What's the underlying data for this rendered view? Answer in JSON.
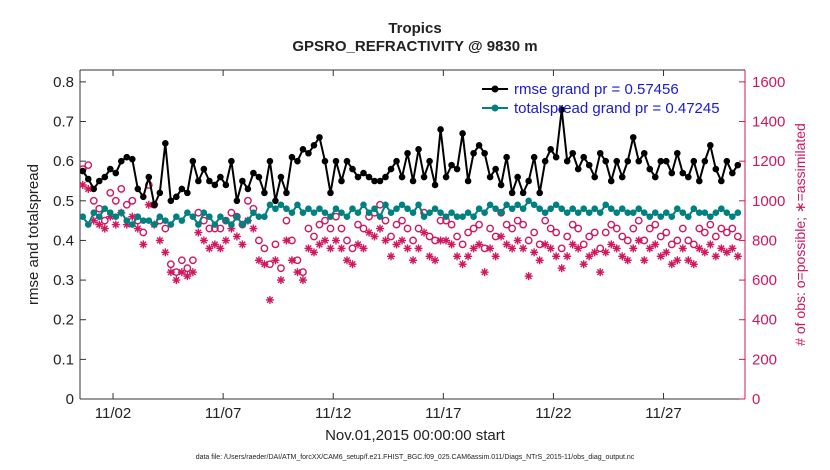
{
  "chart_data": {
    "type": "line",
    "title": "Tropics",
    "subtitle": "GPSRO_REFRACTIVITY @ 9830 m",
    "xlabel": "Nov.01,2015 00:00:00 start",
    "ylabel": "rmse and totalspread",
    "y2label": "# of obs: o=possible; ∗=assimilated",
    "footnote": "data file: /Users/raeder/DAI/ATM_forcXX/CAM6_setup/f.e21.FHIST_BGC.f09_025.CAM6assim.011/Diags_NTrS_2015-11/obs_diag_output.nc",
    "xlim": [
      0.5,
      30.7
    ],
    "ylim": [
      0,
      0.83
    ],
    "y2lim": [
      0,
      1660
    ],
    "xticks": [
      {
        "value": 2,
        "label": "11/02"
      },
      {
        "value": 7,
        "label": "11/07"
      },
      {
        "value": 12,
        "label": "11/12"
      },
      {
        "value": 17,
        "label": "11/17"
      },
      {
        "value": 22,
        "label": "11/22"
      },
      {
        "value": 27,
        "label": "11/27"
      }
    ],
    "yticks": [
      "0",
      "0.1",
      "0.2",
      "0.3",
      "0.4",
      "0.5",
      "0.6",
      "0.7",
      "0.8"
    ],
    "y2ticks": [
      "0",
      "200",
      "400",
      "600",
      "800",
      "1000",
      "1200",
      "1400",
      "1600"
    ],
    "legend_location": "top-right",
    "series": [
      {
        "name": "rmse grand pr = 0.57456",
        "axis": "left",
        "color": "#000000",
        "marker": "circle",
        "x": [
          0.625,
          0.875,
          1.125,
          1.375,
          1.625,
          1.875,
          2.125,
          2.375,
          2.625,
          2.875,
          3.125,
          3.375,
          3.625,
          3.875,
          4.125,
          4.375,
          4.625,
          4.875,
          5.125,
          5.375,
          5.625,
          5.875,
          6.125,
          6.375,
          6.625,
          6.875,
          7.125,
          7.375,
          7.625,
          7.875,
          8.125,
          8.375,
          8.625,
          8.875,
          9.125,
          9.375,
          9.625,
          9.875,
          10.125,
          10.375,
          10.625,
          10.875,
          11.125,
          11.375,
          11.625,
          11.875,
          12.125,
          12.375,
          12.625,
          12.875,
          13.125,
          13.375,
          13.625,
          13.875,
          14.125,
          14.375,
          14.625,
          14.875,
          15.125,
          15.375,
          15.625,
          15.875,
          16.125,
          16.375,
          16.625,
          16.875,
          17.125,
          17.375,
          17.625,
          17.875,
          18.125,
          18.375,
          18.625,
          18.875,
          19.125,
          19.375,
          19.625,
          19.875,
          20.125,
          20.375,
          20.625,
          20.875,
          21.125,
          21.375,
          21.625,
          21.875,
          22.125,
          22.375,
          22.625,
          22.875,
          23.125,
          23.375,
          23.625,
          23.875,
          24.125,
          24.375,
          24.625,
          24.875,
          25.125,
          25.375,
          25.625,
          25.875,
          26.125,
          26.375,
          26.625,
          26.875,
          27.125,
          27.375,
          27.625,
          27.875,
          28.125,
          28.375,
          28.625,
          28.875,
          29.125,
          29.375,
          29.625,
          29.875,
          30.125,
          30.375
        ],
        "values": [
          0.575,
          0.555,
          0.53,
          0.55,
          0.56,
          0.58,
          0.57,
          0.6,
          0.61,
          0.605,
          0.53,
          0.51,
          0.56,
          0.49,
          0.52,
          0.645,
          0.5,
          0.51,
          0.53,
          0.52,
          0.6,
          0.55,
          0.58,
          0.55,
          0.54,
          0.56,
          0.54,
          0.6,
          0.5,
          0.55,
          0.53,
          0.57,
          0.56,
          0.52,
          0.6,
          0.5,
          0.56,
          0.52,
          0.61,
          0.6,
          0.63,
          0.62,
          0.64,
          0.66,
          0.6,
          0.52,
          0.6,
          0.55,
          0.6,
          0.58,
          0.56,
          0.57,
          0.56,
          0.55,
          0.55,
          0.56,
          0.58,
          0.6,
          0.56,
          0.62,
          0.55,
          0.63,
          0.56,
          0.6,
          0.54,
          0.68,
          0.56,
          0.59,
          0.58,
          0.67,
          0.55,
          0.62,
          0.64,
          0.62,
          0.56,
          0.58,
          0.54,
          0.61,
          0.52,
          0.56,
          0.52,
          0.55,
          0.61,
          0.52,
          0.6,
          0.63,
          0.61,
          0.73,
          0.6,
          0.62,
          0.58,
          0.61,
          0.59,
          0.56,
          0.62,
          0.6,
          0.55,
          0.6,
          0.56,
          0.6,
          0.66,
          0.6,
          0.62,
          0.58,
          0.56,
          0.6,
          0.6,
          0.57,
          0.62,
          0.57,
          0.56,
          0.6,
          0.55,
          0.6,
          0.64,
          0.58,
          0.55,
          0.6,
          0.57,
          0.59
        ],
        "_note": "values above are the primary black rmse series"
      },
      {
        "name": "totalspread grand pr = 0.47245",
        "axis": "left",
        "color": "#008080",
        "marker": "circle",
        "x": [
          0.625,
          0.875,
          1.125,
          1.375,
          1.625,
          1.875,
          2.125,
          2.375,
          2.625,
          2.875,
          3.125,
          3.375,
          3.625,
          3.875,
          4.125,
          4.375,
          4.625,
          4.875,
          5.125,
          5.375,
          5.625,
          5.875,
          6.125,
          6.375,
          6.625,
          6.875,
          7.125,
          7.375,
          7.625,
          7.875,
          8.125,
          8.375,
          8.625,
          8.875,
          9.125,
          9.375,
          9.625,
          9.875,
          10.125,
          10.375,
          10.625,
          10.875,
          11.125,
          11.375,
          11.625,
          11.875,
          12.125,
          12.375,
          12.625,
          12.875,
          13.125,
          13.375,
          13.625,
          13.875,
          14.125,
          14.375,
          14.625,
          14.875,
          15.125,
          15.375,
          15.625,
          15.875,
          16.125,
          16.375,
          16.625,
          16.875,
          17.125,
          17.375,
          17.625,
          17.875,
          18.125,
          18.375,
          18.625,
          18.875,
          19.125,
          19.375,
          19.625,
          19.875,
          20.125,
          20.375,
          20.625,
          20.875,
          21.125,
          21.375,
          21.625,
          21.875,
          22.125,
          22.375,
          22.625,
          22.875,
          23.125,
          23.375,
          23.625,
          23.875,
          24.125,
          24.375,
          24.625,
          24.875,
          25.125,
          25.375,
          25.625,
          25.875,
          26.125,
          26.375,
          26.625,
          26.875,
          27.125,
          27.375,
          27.625,
          27.875,
          28.125,
          28.375,
          28.625,
          28.875,
          29.125,
          29.375,
          29.625,
          29.875,
          30.125,
          30.375
        ],
        "values": [
          0.46,
          0.44,
          0.47,
          0.46,
          0.48,
          0.47,
          0.46,
          0.47,
          0.45,
          0.44,
          0.46,
          0.45,
          0.45,
          0.44,
          0.46,
          0.45,
          0.44,
          0.46,
          0.45,
          0.47,
          0.46,
          0.44,
          0.47,
          0.46,
          0.44,
          0.46,
          0.45,
          0.44,
          0.46,
          0.44,
          0.45,
          0.47,
          0.46,
          0.46,
          0.49,
          0.48,
          0.49,
          0.48,
          0.47,
          0.49,
          0.47,
          0.48,
          0.47,
          0.48,
          0.47,
          0.46,
          0.48,
          0.47,
          0.46,
          0.48,
          0.47,
          0.49,
          0.47,
          0.48,
          0.46,
          0.49,
          0.47,
          0.48,
          0.49,
          0.48,
          0.47,
          0.49,
          0.46,
          0.47,
          0.48,
          0.47,
          0.46,
          0.47,
          0.46,
          0.46,
          0.47,
          0.46,
          0.48,
          0.47,
          0.49,
          0.48,
          0.47,
          0.49,
          0.48,
          0.49,
          0.48,
          0.5,
          0.49,
          0.48,
          0.47,
          0.48,
          0.49,
          0.48,
          0.47,
          0.48,
          0.47,
          0.48,
          0.47,
          0.48,
          0.47,
          0.49,
          0.48,
          0.47,
          0.48,
          0.47,
          0.47,
          0.48,
          0.47,
          0.46,
          0.47,
          0.46,
          0.47,
          0.46,
          0.48,
          0.47,
          0.46,
          0.48,
          0.47,
          0.47,
          0.46,
          0.47,
          0.48,
          0.47,
          0.46,
          0.47
        ]
      },
      {
        "name": "# of obs possible",
        "axis": "right",
        "color": "#d0165e",
        "marker": "open-circle",
        "x": [
          0.625,
          0.875,
          1.125,
          1.375,
          1.625,
          1.875,
          2.125,
          2.375,
          2.625,
          2.875,
          3.125,
          3.375,
          3.625,
          3.875,
          4.125,
          4.375,
          4.625,
          4.875,
          5.125,
          5.375,
          5.625,
          5.875,
          6.125,
          6.375,
          6.625,
          6.875,
          7.125,
          7.375,
          7.625,
          7.875,
          8.125,
          8.375,
          8.625,
          8.875,
          9.125,
          9.375,
          9.625,
          9.875,
          10.125,
          10.375,
          10.625,
          10.875,
          11.125,
          11.375,
          11.625,
          11.875,
          12.125,
          12.375,
          12.625,
          12.875,
          13.125,
          13.375,
          13.625,
          13.875,
          14.125,
          14.375,
          14.625,
          14.875,
          15.125,
          15.375,
          15.625,
          15.875,
          16.125,
          16.375,
          16.625,
          16.875,
          17.125,
          17.375,
          17.625,
          17.875,
          18.125,
          18.375,
          18.625,
          18.875,
          19.125,
          19.375,
          19.625,
          19.875,
          20.125,
          20.375,
          20.625,
          20.875,
          21.125,
          21.375,
          21.625,
          21.875,
          22.125,
          22.375,
          22.625,
          22.875,
          23.125,
          23.375,
          23.625,
          23.875,
          24.125,
          24.375,
          24.625,
          24.875,
          25.125,
          25.375,
          25.625,
          25.875,
          26.125,
          26.375,
          26.625,
          26.875,
          27.125,
          27.375,
          27.625,
          27.875,
          28.125,
          28.375,
          28.625,
          28.875,
          29.125,
          29.375,
          29.625,
          29.875,
          30.125,
          30.375
        ],
        "values": [
          1160,
          1180,
          1000,
          960,
          900,
          1040,
          1000,
          1060,
          980,
          1000,
          900,
          840,
          1080,
          980,
          900,
          860,
          680,
          640,
          700,
          660,
          700,
          940,
          900,
          860,
          860,
          860,
          900,
          940,
          920,
          880,
          1000,
          960,
          800,
          760,
          680,
          780,
          660,
          900,
          800,
          700,
          640,
          860,
          820,
          880,
          900,
          860,
          920,
          860,
          800,
          760,
          880,
          860,
          920,
          940,
          980,
          900,
          820,
          880,
          900,
          860,
          800,
          860,
          940,
          820,
          800,
          900,
          900,
          880,
          820,
          780,
          840,
          860,
          880,
          760,
          860,
          820,
          940,
          880,
          860,
          900,
          880,
          800,
          840,
          780,
          900,
          860,
          840,
          760,
          820,
          880,
          860,
          780,
          820,
          840,
          760,
          840,
          880,
          860,
          820,
          800,
          860,
          900,
          800,
          860,
          880,
          820,
          840,
          780,
          800,
          860,
          800,
          780,
          860,
          840,
          880,
          820,
          860,
          840,
          860,
          820
        ]
      },
      {
        "name": "# of obs assimilated",
        "axis": "right",
        "color": "#d0165e",
        "marker": "asterisk",
        "x": [
          0.625,
          0.875,
          1.125,
          1.375,
          1.625,
          1.875,
          2.125,
          2.375,
          2.625,
          2.875,
          3.125,
          3.375,
          3.625,
          3.875,
          4.125,
          4.375,
          4.625,
          4.875,
          5.125,
          5.375,
          5.625,
          5.875,
          6.125,
          6.375,
          6.625,
          6.875,
          7.125,
          7.375,
          7.625,
          7.875,
          8.125,
          8.375,
          8.625,
          8.875,
          9.125,
          9.375,
          9.625,
          9.875,
          10.125,
          10.375,
          10.625,
          10.875,
          11.125,
          11.375,
          11.625,
          11.875,
          12.125,
          12.375,
          12.625,
          12.875,
          13.125,
          13.375,
          13.625,
          13.875,
          14.125,
          14.375,
          14.625,
          14.875,
          15.125,
          15.375,
          15.625,
          15.875,
          16.125,
          16.375,
          16.625,
          16.875,
          17.125,
          17.375,
          17.625,
          17.875,
          18.125,
          18.375,
          18.625,
          18.875,
          19.125,
          19.375,
          19.625,
          19.875,
          20.125,
          20.375,
          20.625,
          20.875,
          21.125,
          21.375,
          21.625,
          21.875,
          22.125,
          22.375,
          22.625,
          22.875,
          23.125,
          23.375,
          23.625,
          23.875,
          24.125,
          24.375,
          24.625,
          24.875,
          25.125,
          25.375,
          25.625,
          25.875,
          26.125,
          26.375,
          26.625,
          26.875,
          27.125,
          27.375,
          27.625,
          27.875,
          28.125,
          28.375,
          28.625,
          28.875,
          29.125,
          29.375,
          29.625,
          29.875,
          30.125,
          30.375
        ],
        "values": [
          1080,
          1060,
          900,
          880,
          860,
          920,
          880,
          940,
          880,
          920,
          860,
          780,
          980,
          880,
          800,
          740,
          640,
          600,
          640,
          620,
          640,
          840,
          800,
          760,
          780,
          760,
          800,
          860,
          820,
          780,
          900,
          860,
          700,
          680,
          500,
          700,
          600,
          800,
          700,
          640,
          600,
          760,
          740,
          780,
          800,
          760,
          800,
          760,
          700,
          680,
          780,
          760,
          840,
          820,
          860,
          800,
          720,
          780,
          800,
          760,
          700,
          760,
          840,
          720,
          700,
          800,
          800,
          780,
          720,
          680,
          720,
          760,
          780,
          640,
          760,
          720,
          820,
          780,
          760,
          800,
          760,
          620,
          740,
          700,
          780,
          760,
          720,
          660,
          720,
          780,
          760,
          680,
          720,
          740,
          640,
          740,
          780,
          760,
          720,
          700,
          760,
          800,
          700,
          760,
          780,
          720,
          740,
          680,
          700,
          760,
          700,
          680,
          760,
          740,
          780,
          720,
          760,
          740,
          760,
          720
        ]
      }
    ]
  }
}
